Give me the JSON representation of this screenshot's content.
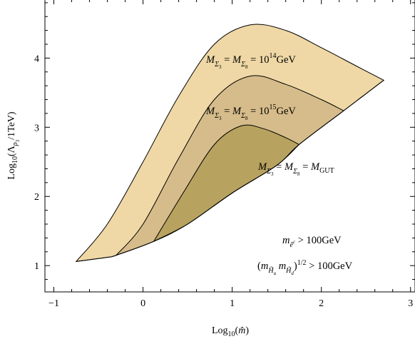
{
  "chart_data": {
    "type": "area",
    "xlabel": "Log₁₀(m̂)",
    "ylabel": "Log₁₀(Λ_ρ₃/1TeV)",
    "xlim": [
      -1.1,
      3.05
    ],
    "ylim": [
      0.62,
      4.85
    ],
    "x_ticks": [
      -1,
      0,
      1,
      2,
      3
    ],
    "x_tick_labels": [
      "−1",
      "0",
      "1",
      "2",
      "3"
    ],
    "y_ticks": [
      1,
      2,
      3,
      4
    ],
    "y_tick_labels": [
      "1",
      "2",
      "3",
      "4"
    ],
    "grid": false,
    "colors": {
      "outer": "#efd8a6",
      "middle": "#d6bc8a",
      "inner": "#b7a35f",
      "stroke": "#000000"
    },
    "lower_boundary": [
      {
        "x": -0.75,
        "y": 1.06
      },
      {
        "x": -0.4,
        "y": 1.12
      },
      {
        "x": -0.3,
        "y": 1.15
      },
      {
        "x": 0.12,
        "y": 1.35
      },
      {
        "x": 0.5,
        "y": 1.6
      },
      {
        "x": 1.0,
        "y": 2.05
      },
      {
        "x": 1.5,
        "y": 2.45
      },
      {
        "x": 1.75,
        "y": 2.75
      },
      {
        "x": 2.25,
        "y": 3.24
      },
      {
        "x": 2.7,
        "y": 3.68
      }
    ],
    "series": [
      {
        "label": "M_Σ3 = M_Σ8 = 10^14 GeV",
        "upper_curve": [
          {
            "x": -0.75,
            "y": 1.06
          },
          {
            "x": -0.4,
            "y": 1.6
          },
          {
            "x": 0.0,
            "y": 2.5
          },
          {
            "x": 0.4,
            "y": 3.45
          },
          {
            "x": 0.8,
            "y": 4.2
          },
          {
            "x": 1.2,
            "y": 4.48
          },
          {
            "x": 1.6,
            "y": 4.4
          },
          {
            "x": 2.0,
            "y": 4.15
          },
          {
            "x": 2.4,
            "y": 3.88
          },
          {
            "x": 2.7,
            "y": 3.68
          }
        ],
        "end_point": {
          "x": 2.7,
          "y": 3.68
        }
      },
      {
        "label": "M_Σ3 = M_Σ8 = 10^15 GeV",
        "upper_curve": [
          {
            "x": -0.3,
            "y": 1.15
          },
          {
            "x": 0.0,
            "y": 1.6
          },
          {
            "x": 0.4,
            "y": 2.55
          },
          {
            "x": 0.8,
            "y": 3.4
          },
          {
            "x": 1.2,
            "y": 3.74
          },
          {
            "x": 1.6,
            "y": 3.62
          },
          {
            "x": 2.0,
            "y": 3.4
          },
          {
            "x": 2.25,
            "y": 3.24
          }
        ],
        "end_point": {
          "x": 2.25,
          "y": 3.24
        }
      },
      {
        "label": "M_Σ3 = M_Σ8 = M_GUT",
        "upper_curve": [
          {
            "x": 0.12,
            "y": 1.35
          },
          {
            "x": 0.45,
            "y": 2.05
          },
          {
            "x": 0.8,
            "y": 2.75
          },
          {
            "x": 1.1,
            "y": 3.02
          },
          {
            "x": 1.35,
            "y": 2.98
          },
          {
            "x": 1.6,
            "y": 2.85
          },
          {
            "x": 1.75,
            "y": 2.75
          }
        ],
        "end_point": {
          "x": 1.75,
          "y": 2.75
        }
      }
    ],
    "annotations": [
      {
        "text": "m_ẽᶜ > 100GeV"
      },
      {
        "text": "(m_H̃u m_H̃d)^1/2 > 100GeV"
      }
    ]
  }
}
